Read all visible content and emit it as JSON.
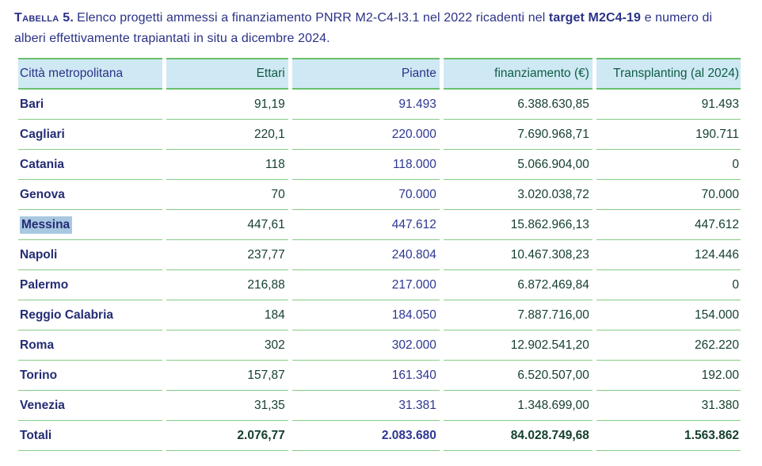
{
  "caption": {
    "label": "Tabella 5.",
    "text_before": "Elenco progetti ammessi a finanziamento PNRR M2-C4-I3.1 nel 2022 ricadenti nel ",
    "bold_term": "target M2C4-19",
    "text_after": " e numero di alberi effettivamente trapiantati in situ a dicembre 2024."
  },
  "table": {
    "columns": [
      {
        "label": "Città metropolitana",
        "align": "left",
        "color": "navy"
      },
      {
        "label": "Ettari",
        "align": "right",
        "color": "green"
      },
      {
        "label": "Piante",
        "align": "right",
        "color": "navy"
      },
      {
        "label": "finanziamento (€)",
        "align": "right",
        "color": "green"
      },
      {
        "label": "Transplanting (al 2024)",
        "align": "right",
        "color": "green"
      }
    ],
    "rows": [
      {
        "city": "Bari",
        "ettari": "91,19",
        "piante": "91.493",
        "finanziamento": "6.388.630,85",
        "transplanting": "91.493",
        "highlighted": false
      },
      {
        "city": "Cagliari",
        "ettari": "220,1",
        "piante": "220.000",
        "finanziamento": "7.690.968,71",
        "transplanting": "190.711",
        "highlighted": false
      },
      {
        "city": "Catania",
        "ettari": "118",
        "piante": "118.000",
        "finanziamento": "5.066.904,00",
        "transplanting": "0",
        "highlighted": false
      },
      {
        "city": "Genova",
        "ettari": "70",
        "piante": "70.000",
        "finanziamento": "3.020.038,72",
        "transplanting": "70.000",
        "highlighted": false
      },
      {
        "city": "Messina",
        "ettari": "447,61",
        "piante": "447.612",
        "finanziamento": "15.862.966,13",
        "transplanting": "447.612",
        "highlighted": true
      },
      {
        "city": "Napoli",
        "ettari": "237,77",
        "piante": "240.804",
        "finanziamento": "10.467.308,23",
        "transplanting": "124.446",
        "highlighted": false
      },
      {
        "city": "Palermo",
        "ettari": "216,88",
        "piante": "217.000",
        "finanziamento": "6.872.469,84",
        "transplanting": "0",
        "highlighted": false
      },
      {
        "city": "Reggio Calabria",
        "ettari": "184",
        "piante": "184.050",
        "finanziamento": "7.887.716,00",
        "transplanting": "154.000",
        "highlighted": false
      },
      {
        "city": "Roma",
        "ettari": "302",
        "piante": "302.000",
        "finanziamento": "12.902.541,20",
        "transplanting": "262.220",
        "highlighted": false
      },
      {
        "city": "Torino",
        "ettari": "157,87",
        "piante": "161.340",
        "finanziamento": "6.520.507,00",
        "transplanting": "192.00",
        "highlighted": false
      },
      {
        "city": "Venezia",
        "ettari": "31,35",
        "piante": "31.381",
        "finanziamento": "1.348.699,00",
        "transplanting": "31.380",
        "highlighted": false
      }
    ],
    "totals": {
      "city": "Totali",
      "ettari": "2.076,77",
      "piante": "2.083.680",
      "finanziamento": "84.028.749,68",
      "transplanting": "1.563.862"
    }
  },
  "colors": {
    "navy": "#2b3287",
    "city_navy": "#242c74",
    "value_navy": "#2d3791",
    "green_header": "#0e5c43",
    "green_value": "#143f2d",
    "row_line": "#87cb86",
    "header_line": "#68c06d",
    "header_bg": "#cfe9f4",
    "selection": "#a8c8e1"
  }
}
